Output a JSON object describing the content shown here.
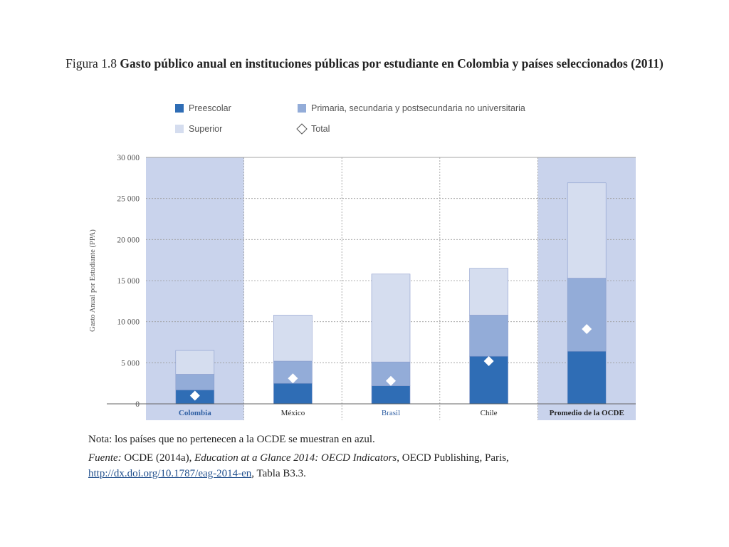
{
  "title": {
    "figure_number": "Figura 1.8",
    "text": "Gasto público anual en instituciones públicas por estudiante en Colombia y países seleccionados (2011)"
  },
  "colors": {
    "preescolar": "#2f6db5",
    "primaria": "#93acd8",
    "superior": "#d5ddef",
    "highlight_band": "#c9d3ec",
    "total_marker": "#ffffff",
    "non_oecd_label": "#2f5fa3",
    "oecd_label": "#222222"
  },
  "chart_data": {
    "type": "bar",
    "stacked": true,
    "categories": [
      "Colombia",
      "México",
      "Brasil",
      "Chile",
      "Promedio de la OCDE"
    ],
    "highlighted_categories": [
      "Colombia",
      "Promedio de la OCDE"
    ],
    "non_oecd_categories": [
      "Colombia",
      "Brasil"
    ],
    "series": [
      {
        "name": "Preescolar",
        "values": [
          1700,
          2500,
          2200,
          5800,
          6400
        ]
      },
      {
        "name": "Primaria, secundaria y postsecundaria no universitaria",
        "values": [
          1900,
          2700,
          2900,
          5000,
          8900
        ]
      },
      {
        "name": "Superior",
        "values": [
          2900,
          5600,
          10700,
          5700,
          11600
        ]
      }
    ],
    "markers": {
      "name": "Total",
      "values": [
        1000,
        3100,
        2800,
        5200,
        9100
      ]
    },
    "ylabel": "Gasto Anual por Estudiante (PPA)",
    "xlabel": "",
    "ylim": [
      0,
      30000
    ],
    "yticks": [
      0,
      5000,
      10000,
      15000,
      20000,
      25000,
      30000
    ],
    "ytick_labels": [
      "0",
      "5 000",
      "10 000",
      "15 000",
      "20 000",
      "25 000",
      "30 000"
    ],
    "grid": true,
    "legend_position": "top"
  },
  "legend": [
    {
      "key": "preescolar",
      "label": "Preescolar",
      "shape": "square"
    },
    {
      "key": "primaria",
      "label": "Primaria, secundaria y postsecundaria no universitaria",
      "shape": "square"
    },
    {
      "key": "superior",
      "label": "Superior",
      "shape": "square"
    },
    {
      "key": "total",
      "label": "Total",
      "shape": "diamond"
    }
  ],
  "notes": {
    "nota": "Nota: los países que no pertenecen a la OCDE se muestran en azul.",
    "fuente_label": "Fuente:",
    "fuente_text1": "OCDE (2014a),",
    "fuente_title": "Education at a Glance 2014: OECD Indicators",
    "fuente_text2": ", OECD Publishing, Paris,",
    "fuente_url": "http://dx.doi.org/10.1787/eag-2014-en",
    "fuente_text3": ", Tabla B3.3."
  }
}
